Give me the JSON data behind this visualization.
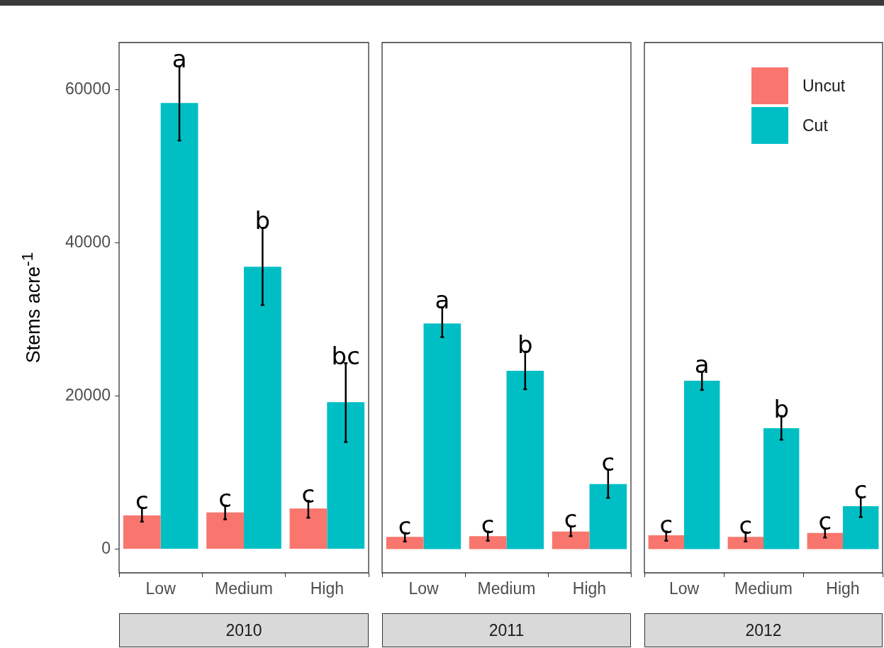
{
  "chart_data": [
    {
      "type": "bar",
      "title": "2010",
      "ylabel": "Stems acre$^{-1}$",
      "categories": [
        "Low",
        "Medium",
        "High"
      ],
      "ylim": [
        -3100,
        66200
      ],
      "yticks": [
        0,
        20000,
        40000,
        60000
      ],
      "grid": false,
      "legend": false,
      "series": [
        {
          "color": "#f8766d",
          "values": [
            4400,
            4800,
            5300
          ],
          "errors": [
            [
              3600,
              5400
            ],
            [
              3900,
              5700
            ],
            [
              4100,
              6300
            ]
          ],
          "value_labels": [
            "c",
            "c",
            "c"
          ]
        },
        {
          "color": "#00bfc4",
          "values": [
            58300,
            36900,
            19200
          ],
          "errors": [
            [
              53400,
              63100
            ],
            [
              31900,
              42000
            ],
            [
              14000,
              24300
            ]
          ],
          "value_labels": [
            "a",
            "b",
            "bc"
          ]
        }
      ]
    },
    {
      "type": "bar",
      "title": "2011",
      "categories": [
        "Low",
        "Medium",
        "High"
      ],
      "ylim": [
        -3100,
        66200
      ],
      "yticks": [
        0,
        20000,
        40000,
        60000
      ],
      "tick_labels": "x",
      "grid": false,
      "legend": false,
      "series": [
        {
          "color": "#f8766d",
          "values": [
            1600,
            1700,
            2300
          ],
          "errors": [
            [
              1000,
              2100
            ],
            [
              1100,
              2300
            ],
            [
              1700,
              3000
            ]
          ],
          "value_labels": [
            "c",
            "c",
            "c"
          ]
        },
        {
          "color": "#00bfc4",
          "values": [
            29500,
            23300,
            8500
          ],
          "errors": [
            [
              27700,
              31600
            ],
            [
              20900,
              25800
            ],
            [
              6700,
              10400
            ]
          ],
          "value_labels": [
            "a",
            "b",
            "c"
          ]
        }
      ]
    },
    {
      "type": "bar",
      "title": "2012",
      "categories": [
        "Low",
        "Medium",
        "High"
      ],
      "ylim": [
        -3100,
        66200
      ],
      "yticks": [
        0,
        20000,
        40000,
        60000
      ],
      "tick_labels": "x",
      "grid": false,
      "legend": "top right",
      "series": [
        {
          "name": "Uncut",
          "color": "#f8766d",
          "values": [
            1800,
            1600,
            2100
          ],
          "errors": [
            [
              1100,
              2300
            ],
            [
              1000,
              2200
            ],
            [
              1500,
              2700
            ]
          ],
          "value_labels": [
            "c",
            "c",
            "c"
          ]
        },
        {
          "name": "Cut",
          "color": "#00bfc4",
          "values": [
            22000,
            15800,
            5600
          ],
          "errors": [
            [
              20800,
              23200
            ],
            [
              14300,
              17400
            ],
            [
              4200,
              6800
            ]
          ],
          "value_labels": [
            "a",
            "b",
            "c"
          ]
        }
      ]
    }
  ]
}
